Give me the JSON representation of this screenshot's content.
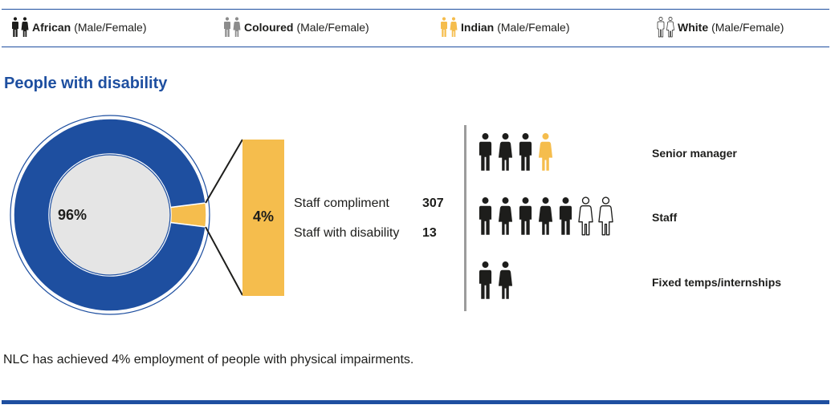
{
  "legend": [
    {
      "name": "African",
      "sub": "(Male/Female)",
      "color": "#1d1d1b",
      "outline": false
    },
    {
      "name": "Coloured",
      "sub": "(Male/Female)",
      "color": "#8c8c8c",
      "outline": false
    },
    {
      "name": "Indian",
      "sub": "(Male/Female)",
      "color": "#f5bd4d",
      "outline": false
    },
    {
      "name": "White",
      "sub": "(Male/Female)",
      "color": "#ffffff",
      "outline": true
    }
  ],
  "section_title": "People with disability",
  "chart_data": {
    "type": "pie",
    "slices": [
      {
        "label": "96%",
        "value": 96,
        "color": "#1e4fa0"
      },
      {
        "label": "4%",
        "value": 4,
        "color": "#f5bd4d"
      }
    ]
  },
  "stats": [
    {
      "label": "Staff compliment",
      "value": "307"
    },
    {
      "label": "Staff with disability",
      "value": "13"
    }
  ],
  "rows": [
    {
      "label": "Senior manager",
      "figures": [
        "african-male",
        "african-female",
        "african-male",
        "indian-female"
      ]
    },
    {
      "label": "Staff",
      "figures": [
        "african-male",
        "african-female",
        "african-male",
        "african-female",
        "african-male",
        "white-female",
        "white-female"
      ]
    },
    {
      "label": "Fixed temps/internships",
      "figures": [
        "african-male",
        "african-female"
      ]
    }
  ],
  "footer_note": "NLC has achieved 4% employment of people with physical impairments.",
  "colors": {
    "brand_blue": "#1e4fa0",
    "accent_yellow": "#f5bd4d",
    "dark": "#1d1d1b"
  }
}
